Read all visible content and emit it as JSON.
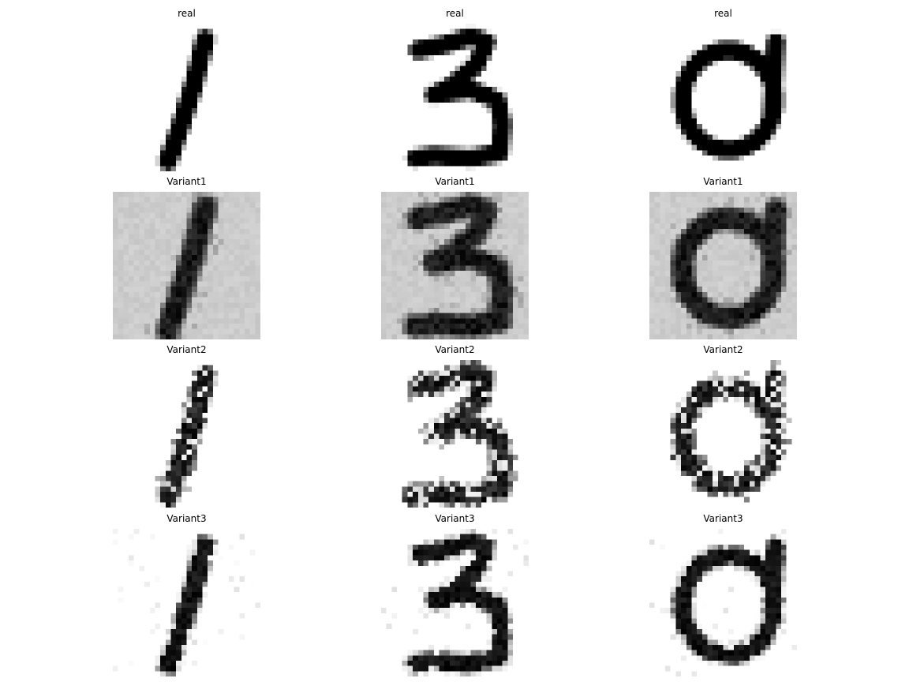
{
  "panels": [
    {
      "title": "real",
      "digit": 1,
      "style": "real"
    },
    {
      "title": "real",
      "digit": 3,
      "style": "real"
    },
    {
      "title": "real",
      "digit": 0,
      "style": "real"
    },
    {
      "title": "Variant1",
      "digit": 1,
      "style": "variant1"
    },
    {
      "title": "Variant1",
      "digit": 3,
      "style": "variant1"
    },
    {
      "title": "Variant1",
      "digit": 0,
      "style": "variant1"
    },
    {
      "title": "Variant2",
      "digit": 1,
      "style": "variant2"
    },
    {
      "title": "Variant2",
      "digit": 3,
      "style": "variant2"
    },
    {
      "title": "Variant2",
      "digit": 0,
      "style": "variant2"
    },
    {
      "title": "Variant3",
      "digit": 1,
      "style": "variant3"
    },
    {
      "title": "Variant3",
      "digit": 3,
      "style": "variant3"
    },
    {
      "title": "Variant3",
      "digit": 0,
      "style": "variant3"
    }
  ],
  "colors": {
    "ink": "#000000",
    "paper": "#ffffff",
    "variant1_background": "#cccccc"
  },
  "colormap": "gray_r"
}
